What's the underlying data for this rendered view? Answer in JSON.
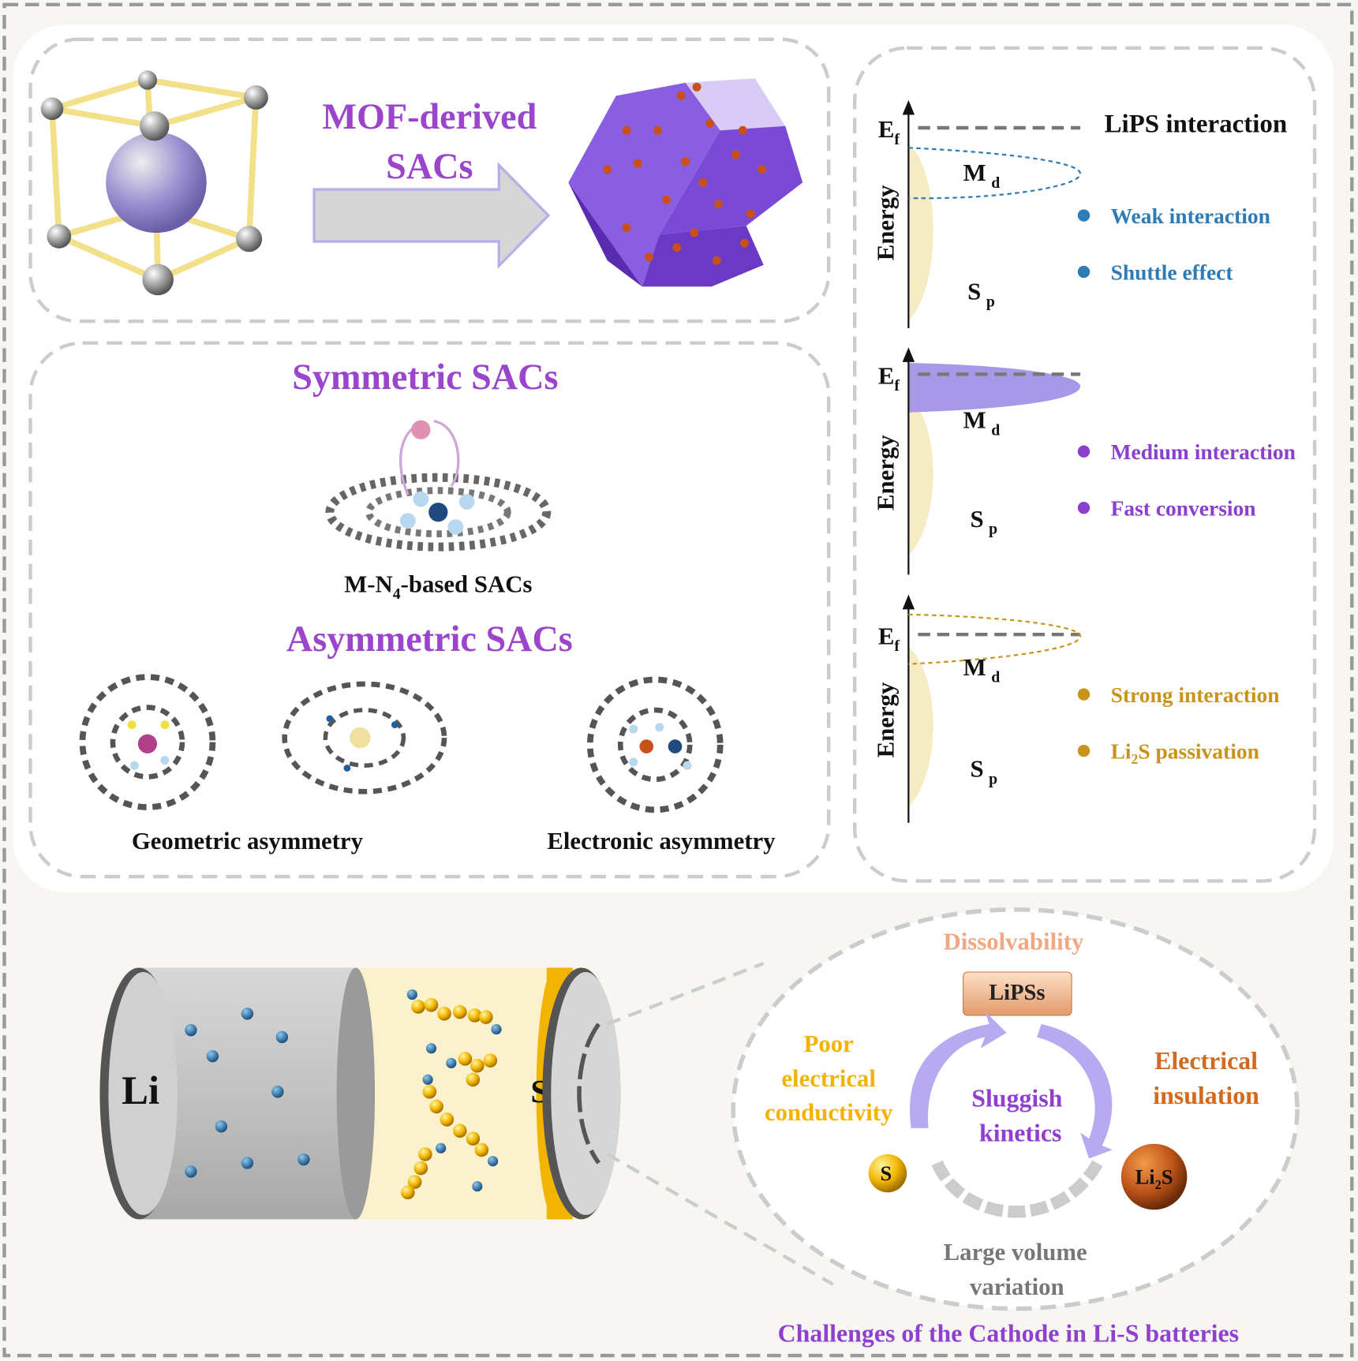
{
  "mof": {
    "title_line1": "MOF-derived",
    "title_line2": "SACs"
  },
  "sacs": {
    "symmetric_title": "Symmetric SACs",
    "mn4_label_pre": "M-N",
    "mn4_label_sub": "4",
    "mn4_label_post": "-based SACs",
    "asymmetric_title": "Asymmetric SACs",
    "geometric_label": "Geometric asymmetry",
    "electronic_label": "Electronic asymmetry"
  },
  "energy": {
    "ef": "E",
    "ef_sub": "f",
    "axis_label": "Energy",
    "md": "M",
    "md_sub": "d",
    "sp": "S",
    "sp_sub": "p",
    "header": "LiPS interaction",
    "panels": [
      {
        "bullets": [
          "Weak interaction",
          "Shuttle effect"
        ],
        "color": "#2e7bb5"
      },
      {
        "bullets": [
          "Medium interaction",
          "Fast conversion"
        ],
        "color": "#8a3fcf"
      },
      {
        "bullets": [
          "Strong interaction",
          "Li2S passivation"
        ],
        "color": "#c8941a"
      }
    ],
    "li2s_pre": "Li",
    "li2s_sub": "2",
    "li2s_post": "S passivation"
  },
  "battery": {
    "li_label": "Li",
    "s_label": "S"
  },
  "challenges": {
    "dissolvability": "Dissolvability",
    "lipss": "LiPSs",
    "poor_line1": "Poor",
    "poor_line2": "electrical",
    "poor_line3": "conductivity",
    "insulation_line1": "Electrical",
    "insulation_line2": "insulation",
    "sluggish_line1": "Sluggish",
    "sluggish_line2": "kinetics",
    "s_ball": "S",
    "li2s_pre": "Li",
    "li2s_sub": "2",
    "li2s_post": "S",
    "volume_line1": "Large volume",
    "volume_line2": "variation",
    "caption": "Challenges of the Cathode in Li-S batteries"
  },
  "colors": {
    "purple": "#9a45cc",
    "blue": "#2e7bb5",
    "gold": "#c8941a",
    "orange": "#d2691e",
    "peach": "#f0a882",
    "yellow": "#f2b400",
    "gray": "#777777"
  }
}
